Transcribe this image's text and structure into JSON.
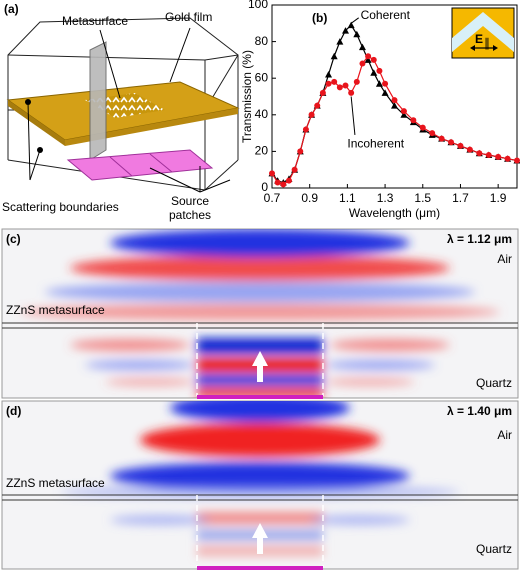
{
  "panel_a": {
    "label": "(a)",
    "metasurface": "Metasurface",
    "gold_film": "Gold film",
    "scattering_boundaries": "Scattering boundaries",
    "source_patches": [
      "Source",
      "patches"
    ]
  },
  "chart_data": {
    "type": "line",
    "label": "(b)",
    "xlabel": "Wavelength (μm)",
    "ylabel": "Transmission (%)",
    "xlim": [
      0.7,
      2.0
    ],
    "ylim": [
      0,
      100
    ],
    "xticks": [
      0.7,
      0.9,
      1.1,
      1.3,
      1.5,
      1.7,
      1.9
    ],
    "yticks": [
      0,
      20,
      40,
      60,
      80,
      100
    ],
    "x": [
      0.7,
      0.73,
      0.76,
      0.79,
      0.82,
      0.85,
      0.88,
      0.91,
      0.94,
      0.97,
      1.0,
      1.03,
      1.06,
      1.09,
      1.12,
      1.15,
      1.18,
      1.21,
      1.24,
      1.27,
      1.3,
      1.35,
      1.4,
      1.45,
      1.5,
      1.55,
      1.6,
      1.65,
      1.7,
      1.75,
      1.8,
      1.85,
      1.9,
      1.95,
      2.0
    ],
    "series": [
      {
        "name": "Coherent",
        "color": "#000000",
        "marker": "triangle",
        "values": [
          8,
          4,
          3,
          5,
          10,
          20,
          32,
          40,
          45,
          52,
          62,
          72,
          80,
          86,
          89,
          84,
          77,
          70,
          63,
          57,
          52,
          45,
          40,
          36,
          32,
          29,
          27,
          25,
          23,
          21,
          19,
          18,
          17,
          16,
          15
        ]
      },
      {
        "name": "Incoherent",
        "color": "#e8141c",
        "marker": "circle",
        "values": [
          8,
          3,
          2,
          4,
          10,
          20,
          32,
          40,
          45,
          52,
          57,
          58,
          55,
          56,
          52,
          58,
          68,
          72,
          70,
          64,
          57,
          48,
          42,
          37,
          33,
          30,
          27,
          25,
          23,
          21,
          19,
          18,
          17,
          16,
          15
        ]
      }
    ],
    "inset": {
      "field": "E",
      "subscript": "∥"
    }
  },
  "panel_c": {
    "label": "(c)",
    "wavelength": "λ = 1.12 μm",
    "air": "Air",
    "metasurface": "ZZnS metasurface",
    "substrate": "Quartz"
  },
  "panel_d": {
    "label": "(d)",
    "wavelength": "λ = 1.40 μm",
    "air": "Air",
    "metasurface": "ZZnS metasurface",
    "substrate": "Quartz"
  }
}
